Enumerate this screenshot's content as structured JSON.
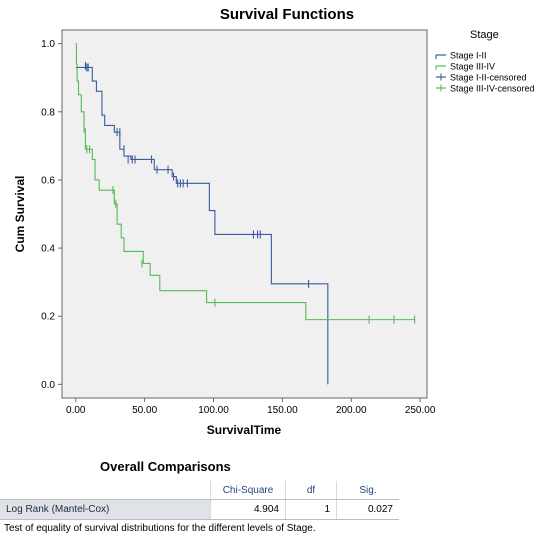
{
  "chart_data": {
    "type": "line",
    "subtype": "kaplan-meier-step",
    "title": "Survival Functions",
    "xlabel": "SurvivalTime",
    "ylabel": "Cum Survival",
    "xlim": [
      -10,
      255
    ],
    "ylim": [
      -0.04,
      1.04
    ],
    "xticks": [
      "0.00",
      "50.00",
      "100.00",
      "150.00",
      "200.00",
      "250.00"
    ],
    "yticks": [
      "0.0",
      "0.2",
      "0.4",
      "0.6",
      "0.8",
      "1.0"
    ],
    "grid": false,
    "plot_background": "#f0f0f0",
    "legend": {
      "title": "Stage",
      "placement": "right",
      "entries": [
        "Stage I-II",
        "Stage III-IV",
        "Stage I-II-censored",
        "Stage III-IV-censored"
      ]
    },
    "series": [
      {
        "name": "Stage I-II",
        "color": "#3a5ba0",
        "steps": [
          [
            0,
            0.93
          ],
          [
            12,
            0.89
          ],
          [
            15,
            0.86
          ],
          [
            19,
            0.79
          ],
          [
            21,
            0.76
          ],
          [
            28,
            0.74
          ],
          [
            32,
            0.69
          ],
          [
            35,
            0.67
          ],
          [
            40,
            0.66
          ],
          [
            57,
            0.63
          ],
          [
            70,
            0.61
          ],
          [
            73,
            0.59
          ],
          [
            97,
            0.51
          ],
          [
            101,
            0.44
          ],
          [
            126,
            0.44
          ],
          [
            142,
            0.295
          ],
          [
            183,
            0.295
          ]
        ],
        "end": [
          183,
          0.0
        ],
        "censored": [
          [
            7,
            0.935
          ],
          [
            8,
            0.93
          ],
          [
            9,
            0.93
          ],
          [
            30,
            0.74
          ],
          [
            32,
            0.74
          ],
          [
            35,
            0.69
          ],
          [
            38,
            0.66
          ],
          [
            41,
            0.66
          ],
          [
            43,
            0.66
          ],
          [
            55,
            0.66
          ],
          [
            59,
            0.63
          ],
          [
            67,
            0.63
          ],
          [
            71,
            0.61
          ],
          [
            74,
            0.59
          ],
          [
            76,
            0.59
          ],
          [
            78,
            0.59
          ],
          [
            81,
            0.59
          ],
          [
            129,
            0.44
          ],
          [
            132,
            0.44
          ],
          [
            134,
            0.44
          ],
          [
            169,
            0.295
          ]
        ]
      },
      {
        "name": "Stage III-IV",
        "color": "#55bb55",
        "steps": [
          [
            0,
            1.0
          ],
          [
            0.5,
            0.94
          ],
          [
            1,
            0.89
          ],
          [
            2,
            0.85
          ],
          [
            4,
            0.8
          ],
          [
            6,
            0.75
          ],
          [
            7,
            0.69
          ],
          [
            12,
            0.66
          ],
          [
            14,
            0.6
          ],
          [
            17,
            0.57
          ],
          [
            28,
            0.53
          ],
          [
            30,
            0.47
          ],
          [
            33,
            0.43
          ],
          [
            35,
            0.39
          ],
          [
            49,
            0.355
          ],
          [
            54,
            0.32
          ],
          [
            61,
            0.275
          ],
          [
            95,
            0.24
          ],
          [
            167,
            0.19
          ]
        ],
        "end": [
          246,
          0.19
        ],
        "censored": [
          [
            6,
            0.75
          ],
          [
            8,
            0.69
          ],
          [
            10,
            0.69
          ],
          [
            27,
            0.57
          ],
          [
            29,
            0.53
          ],
          [
            48,
            0.355
          ],
          [
            101,
            0.24
          ],
          [
            213,
            0.19
          ],
          [
            231,
            0.19
          ],
          [
            246,
            0.19
          ]
        ]
      }
    ]
  },
  "comparison": {
    "title": "Overall Comparisons",
    "columns": [
      "Chi-Square",
      "df",
      "Sig."
    ],
    "rows": [
      {
        "label": "Log Rank (Mantel-Cox)",
        "chi_square": "4.904",
        "df": "1",
        "sig": "0.027"
      }
    ],
    "footnote": "Test of equality of survival distributions for the different levels of Stage."
  }
}
